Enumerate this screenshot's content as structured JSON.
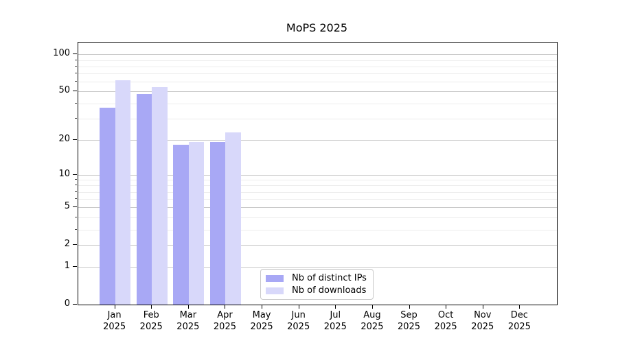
{
  "figure": {
    "title": "MoPS 2025"
  },
  "chart_data": {
    "type": "bar",
    "title": "MoPS 2025",
    "categories": [
      "Jan",
      "Feb",
      "Mar",
      "Apr",
      "May",
      "Jun",
      "Jul",
      "Aug",
      "Sep",
      "Oct",
      "Nov",
      "Dec"
    ],
    "x_tick_second_line": "2025",
    "series": [
      {
        "name": "Nb of distinct IPs",
        "color": "#a8a8f5",
        "values": [
          37,
          48,
          18,
          19,
          null,
          null,
          null,
          null,
          null,
          null,
          null,
          null
        ]
      },
      {
        "name": "Nb of downloads",
        "color": "#d8d8fa",
        "values": [
          62,
          54,
          19,
          23,
          null,
          null,
          null,
          null,
          null,
          null,
          null,
          null
        ]
      }
    ],
    "yscale": "symlog (log1p)",
    "ylim": [
      0,
      125
    ],
    "yticks": [
      0,
      1,
      2,
      5,
      10,
      20,
      50,
      100
    ],
    "minor_yticks": [
      3,
      4,
      6,
      7,
      8,
      9,
      30,
      40,
      60,
      70,
      80,
      90
    ],
    "grid": "horizontal major+minor",
    "legend": {
      "location": "lower-center-inside",
      "entries": [
        "Nb of distinct IPs",
        "Nb of downloads"
      ]
    }
  },
  "colors": {
    "bar_distinct_ips": "#a8a8f5",
    "bar_downloads": "#d8d8fa",
    "major_grid": "#c9c9c9",
    "minor_grid": "#ececec",
    "axis": "#000000",
    "legend_border": "#c9c9c9"
  }
}
